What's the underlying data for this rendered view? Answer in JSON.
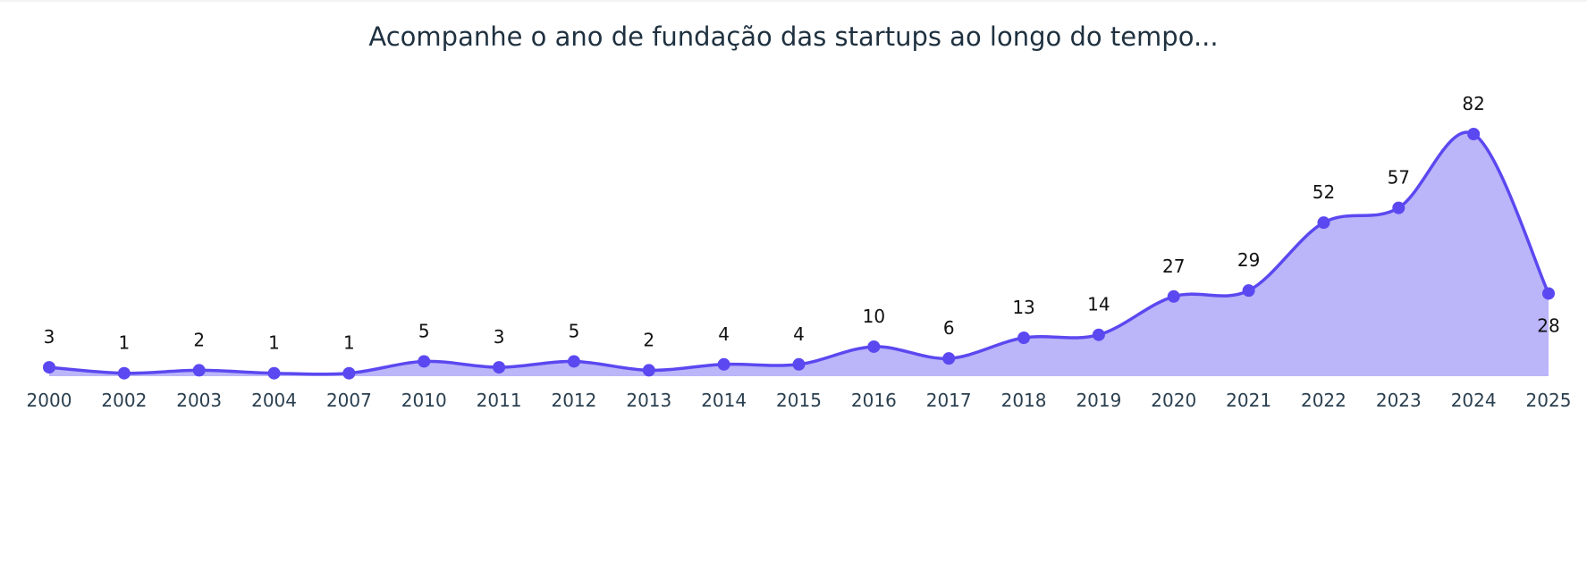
{
  "chart_data": {
    "type": "area",
    "title": "Acompanhe o ano de fundação das startups ao longo do tempo...",
    "xlabel": "",
    "ylabel": "",
    "categories": [
      "2000",
      "2002",
      "2003",
      "2004",
      "2007",
      "2010",
      "2011",
      "2012",
      "2013",
      "2014",
      "2015",
      "2016",
      "2017",
      "2018",
      "2019",
      "2020",
      "2021",
      "2022",
      "2023",
      "2024",
      "2025"
    ],
    "values": [
      3,
      1,
      2,
      1,
      1,
      5,
      3,
      5,
      2,
      4,
      4,
      10,
      6,
      13,
      14,
      27,
      29,
      52,
      57,
      82,
      28
    ],
    "ylim": [
      0,
      82
    ],
    "grid": false,
    "legend": "none",
    "line_shape": "spline",
    "markers": true,
    "data_labels": true,
    "colors": {
      "line": "#5b48f0",
      "fill": "#bbb5f9",
      "marker": "#5b48f0"
    }
  }
}
